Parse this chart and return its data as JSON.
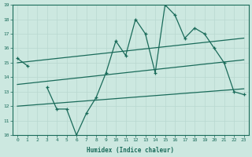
{
  "xlabel": "Humidex (Indice chaleur)",
  "background_color": "#cce8e0",
  "grid_color": "#b8d8d0",
  "line_color": "#1a6b5a",
  "x_data": [
    0,
    1,
    2,
    3,
    4,
    5,
    6,
    7,
    8,
    9,
    10,
    11,
    12,
    13,
    14,
    15,
    16,
    17,
    18,
    19,
    20,
    21,
    22,
    23
  ],
  "y_main": [
    15.3,
    14.8,
    13.3,
    13.3,
    11.8,
    11.8,
    10.0,
    11.5,
    12.6,
    14.3,
    16.5,
    15.5,
    18.0,
    17.0,
    14.3,
    19.0,
    18.3,
    16.7,
    17.4,
    17.0,
    16.0,
    15.0,
    13.0,
    12.8
  ],
  "y_main_skip": [
    0,
    1,
    3,
    4,
    5,
    6,
    7,
    8,
    9,
    10,
    11,
    12,
    13,
    14,
    15,
    16,
    17,
    18,
    19,
    20,
    21,
    22,
    23
  ],
  "reg_upper_x0": 0,
  "reg_upper_y0": 15.0,
  "reg_upper_x1": 23,
  "reg_upper_y1": 16.7,
  "reg_mid_x0": 0,
  "reg_mid_y0": 13.5,
  "reg_mid_x1": 23,
  "reg_mid_y1": 15.2,
  "reg_lower_x0": 0,
  "reg_lower_y0": 12.0,
  "reg_lower_x1": 23,
  "reg_lower_y1": 13.2,
  "ylim": [
    10,
    19
  ],
  "xlim_min": -0.5,
  "xlim_max": 23.5,
  "yticks": [
    10,
    11,
    12,
    13,
    14,
    15,
    16,
    17,
    18,
    19
  ],
  "xticks": [
    0,
    1,
    2,
    3,
    4,
    5,
    6,
    7,
    8,
    9,
    10,
    11,
    12,
    13,
    14,
    15,
    16,
    17,
    18,
    19,
    20,
    21,
    22,
    23
  ]
}
